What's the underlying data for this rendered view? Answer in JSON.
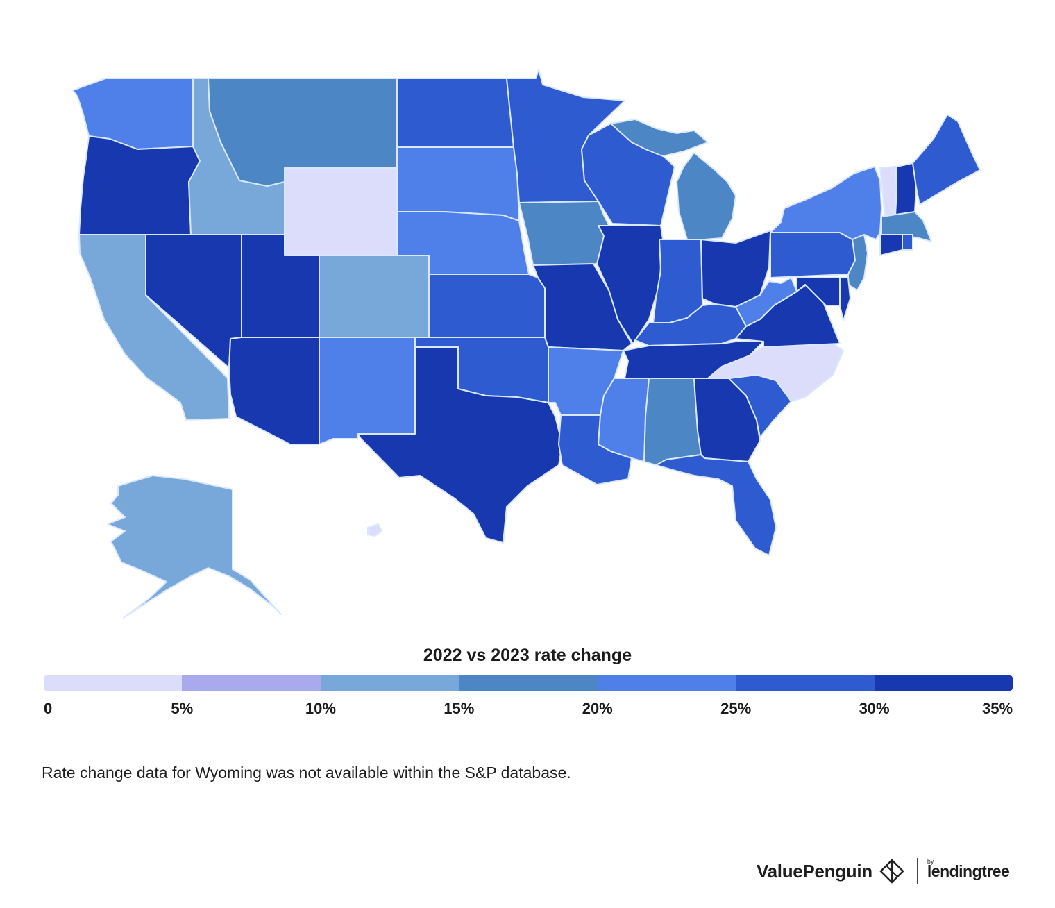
{
  "map": {
    "regions": [
      {
        "name": "washington",
        "label": "Washington",
        "bucket": 5
      },
      {
        "name": "oregon",
        "label": "Oregon",
        "bucket": 7
      },
      {
        "name": "california",
        "label": "California",
        "bucket": 3
      },
      {
        "name": "idaho",
        "label": "Idaho",
        "bucket": 3
      },
      {
        "name": "nevada",
        "label": "Nevada",
        "bucket": 7
      },
      {
        "name": "montana",
        "label": "Montana",
        "bucket": 4
      },
      {
        "name": "wyoming",
        "label": "Wyoming",
        "bucket": 1
      },
      {
        "name": "utah",
        "label": "Utah",
        "bucket": 7
      },
      {
        "name": "colorado",
        "label": "Colorado",
        "bucket": 3
      },
      {
        "name": "arizona",
        "label": "Arizona",
        "bucket": 7
      },
      {
        "name": "new-mexico",
        "label": "New Mexico",
        "bucket": 5
      },
      {
        "name": "north-dakota",
        "label": "North Dakota",
        "bucket": 6
      },
      {
        "name": "south-dakota",
        "label": "South Dakota",
        "bucket": 5
      },
      {
        "name": "nebraska",
        "label": "Nebraska",
        "bucket": 5
      },
      {
        "name": "kansas",
        "label": "Kansas",
        "bucket": 6
      },
      {
        "name": "oklahoma",
        "label": "Oklahoma",
        "bucket": 6
      },
      {
        "name": "texas",
        "label": "Texas",
        "bucket": 7
      },
      {
        "name": "minnesota",
        "label": "Minnesota",
        "bucket": 6
      },
      {
        "name": "iowa",
        "label": "Iowa",
        "bucket": 4
      },
      {
        "name": "missouri",
        "label": "Missouri",
        "bucket": 7
      },
      {
        "name": "arkansas",
        "label": "Arkansas",
        "bucket": 5
      },
      {
        "name": "louisiana",
        "label": "Louisiana",
        "bucket": 6
      },
      {
        "name": "wisconsin",
        "label": "Wisconsin",
        "bucket": 6
      },
      {
        "name": "illinois",
        "label": "Illinois",
        "bucket": 7
      },
      {
        "name": "michigan-lower",
        "label": "Michigan",
        "bucket": 4
      },
      {
        "name": "michigan-upper",
        "label": "Michigan",
        "bucket": 4
      },
      {
        "name": "indiana",
        "label": "Indiana",
        "bucket": 6
      },
      {
        "name": "ohio",
        "label": "Ohio",
        "bucket": 7
      },
      {
        "name": "kentucky",
        "label": "Kentucky",
        "bucket": 6
      },
      {
        "name": "tennessee",
        "label": "Tennessee",
        "bucket": 7
      },
      {
        "name": "mississippi",
        "label": "Mississippi",
        "bucket": 5
      },
      {
        "name": "alabama",
        "label": "Alabama",
        "bucket": 4
      },
      {
        "name": "georgia",
        "label": "Georgia",
        "bucket": 7
      },
      {
        "name": "florida",
        "label": "Florida",
        "bucket": 6
      },
      {
        "name": "south-carolina",
        "label": "South Carolina",
        "bucket": 6
      },
      {
        "name": "north-carolina",
        "label": "North Carolina",
        "bucket": 1
      },
      {
        "name": "virginia",
        "label": "Virginia",
        "bucket": 7
      },
      {
        "name": "west-virginia",
        "label": "West Virginia",
        "bucket": 5
      },
      {
        "name": "pennsylvania",
        "label": "Pennsylvania",
        "bucket": 6
      },
      {
        "name": "new-york",
        "label": "New York",
        "bucket": 5
      },
      {
        "name": "new-jersey",
        "label": "New Jersey",
        "bucket": 4
      },
      {
        "name": "delaware",
        "label": "Delaware",
        "bucket": 7
      },
      {
        "name": "maryland",
        "label": "Maryland",
        "bucket": 7
      },
      {
        "name": "vermont",
        "label": "Vermont",
        "bucket": 1
      },
      {
        "name": "new-hampshire",
        "label": "New Hampshire",
        "bucket": 7
      },
      {
        "name": "maine",
        "label": "Maine",
        "bucket": 6
      },
      {
        "name": "massachusetts",
        "label": "Massachusetts",
        "bucket": 4
      },
      {
        "name": "connecticut",
        "label": "Connecticut",
        "bucket": 7
      },
      {
        "name": "rhode-island",
        "label": "Rhode Island",
        "bucket": 6
      },
      {
        "name": "alaska",
        "label": "Alaska",
        "bucket": 3
      },
      {
        "name": "hawaii",
        "label": "Hawaii",
        "bucket": 1
      }
    ]
  },
  "legend": {
    "title": "2022 vs 2023 rate change",
    "ticks": [
      "0",
      "5%",
      "10%",
      "15%",
      "20%",
      "25%",
      "30%",
      "35%"
    ],
    "colors": [
      "#dcdcfb",
      "#a9aaee",
      "#78a8da",
      "#4c86c4",
      "#4f80ea",
      "#2e5bd0",
      "#1838b0"
    ]
  },
  "bucket_colors": [
    "#dcdcfb",
    "#a9aaee",
    "#78a8da",
    "#4c86c4",
    "#4f80ea",
    "#2e5bd0",
    "#1838b0"
  ],
  "note": "Rate change data for Wyoming was not available within the S&P database.",
  "branding": {
    "name": "ValuePenguin",
    "by": "by",
    "partner": "lendingtree"
  }
}
